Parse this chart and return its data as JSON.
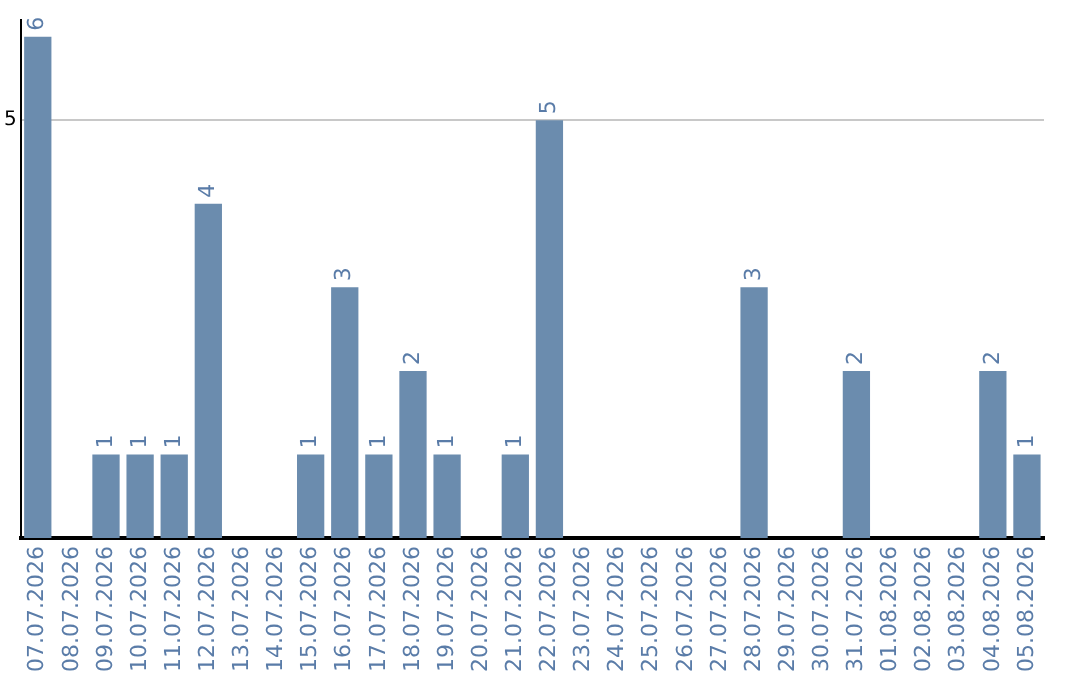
{
  "chart_data": {
    "type": "bar",
    "categories": [
      "07.07.2026",
      "08.07.2026",
      "09.07.2026",
      "10.07.2026",
      "11.07.2026",
      "12.07.2026",
      "13.07.2026",
      "14.07.2026",
      "15.07.2026",
      "16.07.2026",
      "17.07.2026",
      "18.07.2026",
      "19.07.2026",
      "20.07.2026",
      "21.07.2026",
      "22.07.2026",
      "23.07.2026",
      "24.07.2026",
      "25.07.2026",
      "26.07.2026",
      "27.07.2026",
      "28.07.2026",
      "29.07.2026",
      "30.07.2026",
      "31.07.2026",
      "01.08.2026",
      "02.08.2026",
      "03.08.2026",
      "04.08.2026",
      "05.08.2026"
    ],
    "values": [
      6,
      0,
      1,
      1,
      1,
      4,
      0,
      0,
      1,
      3,
      1,
      2,
      1,
      0,
      1,
      5,
      0,
      0,
      0,
      0,
      0,
      3,
      0,
      0,
      2,
      0,
      0,
      0,
      2,
      1
    ],
    "value_labels": [
      "6",
      null,
      "1",
      "1",
      "1",
      "4",
      null,
      null,
      "1",
      "3",
      "1",
      "2",
      "1",
      null,
      "1",
      "5",
      null,
      null,
      null,
      null,
      null,
      "3",
      null,
      null,
      "2",
      null,
      null,
      null,
      "2",
      "1"
    ],
    "color": "#6b8cae",
    "ylim": [
      0,
      6.2
    ],
    "yticks": [
      5
    ],
    "grid": "y",
    "legend": false
  }
}
